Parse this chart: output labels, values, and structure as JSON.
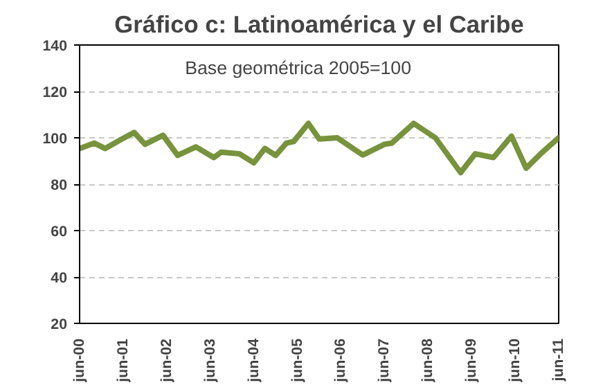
{
  "chart_data": {
    "type": "line",
    "title": "Gráfico c: Latinoamérica y el Caribe",
    "annotations": [
      "Base geométrica 2005=100"
    ],
    "x": [
      "2000-06",
      "2000-10",
      "2001-01",
      "2001-05",
      "2001-09",
      "2001-12",
      "2002-05",
      "2002-09",
      "2003-02",
      "2003-07",
      "2003-09",
      "2004-02",
      "2004-06",
      "2004-09",
      "2004-12",
      "2005-03",
      "2005-05",
      "2005-09",
      "2005-12",
      "2006-05",
      "2006-12",
      "2007-06",
      "2007-08",
      "2008-02",
      "2008-08",
      "2009-03",
      "2009-07",
      "2009-12",
      "2010-05",
      "2010-09",
      "2011-01",
      "2011-06"
    ],
    "series": [
      {
        "color": "#77933c",
        "values": [
          95.4,
          97.7,
          95.4,
          98.9,
          102.3,
          97.2,
          101.1,
          92.4,
          96.1,
          91.5,
          93.8,
          93.1,
          89.2,
          95.4,
          92.4,
          97.7,
          98.4,
          106.2,
          99.5,
          100,
          92.6,
          97.2,
          97.7,
          106.2,
          100,
          85,
          93.1,
          91.5,
          100.7,
          86.9,
          93.1,
          100
        ]
      }
    ],
    "ylim": [
      20,
      140
    ],
    "yticks": [
      20,
      40,
      60,
      80,
      100,
      120,
      140
    ],
    "xlim": [
      "2000-06",
      "2011-06"
    ],
    "xticks": [
      {
        "value": "2000-06",
        "label": "jun-00"
      },
      {
        "value": "2001-06",
        "label": "jun-01"
      },
      {
        "value": "2002-06",
        "label": "jun-02"
      },
      {
        "value": "2003-06",
        "label": "jun-03"
      },
      {
        "value": "2004-06",
        "label": "jun-04"
      },
      {
        "value": "2005-06",
        "label": "jun-05"
      },
      {
        "value": "2006-06",
        "label": "jun-06"
      },
      {
        "value": "2007-06",
        "label": "jun-07"
      },
      {
        "value": "2008-06",
        "label": "jun-08"
      },
      {
        "value": "2009-06",
        "label": "jun-09"
      },
      {
        "value": "2010-06",
        "label": "jun-10"
      },
      {
        "value": "2011-06",
        "label": "jun-11"
      }
    ],
    "grid": "y",
    "line_style": "solid"
  }
}
